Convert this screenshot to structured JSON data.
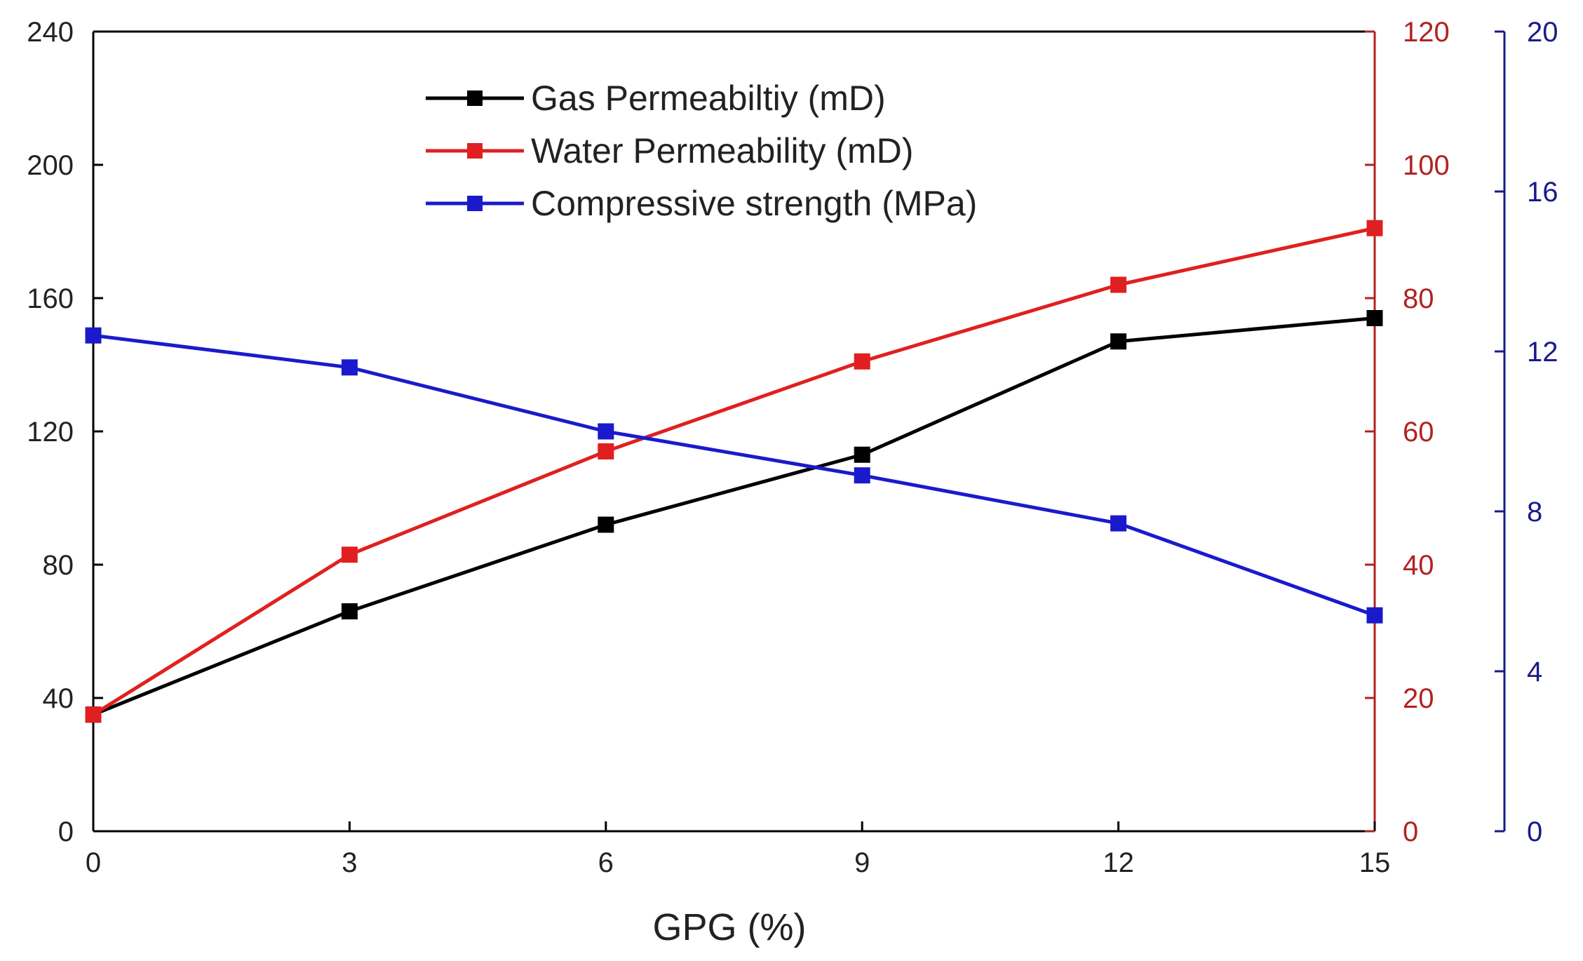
{
  "chart_data": {
    "type": "line",
    "title": "",
    "xlabel": "GPG (%)",
    "x": [
      0,
      3,
      6,
      9,
      12,
      15
    ],
    "xlim": [
      0,
      15
    ],
    "xticks": [
      0,
      3,
      6,
      9,
      12,
      15
    ],
    "grid": false,
    "legend_position": "top-center",
    "axes": {
      "left": {
        "min": 0,
        "max": 240,
        "ticks": [
          0,
          40,
          80,
          120,
          160,
          200,
          240
        ],
        "color": "#000000"
      },
      "right1": {
        "min": 0,
        "max": 120,
        "ticks": [
          0,
          20,
          40,
          60,
          80,
          100,
          120
        ],
        "color": "#b22222"
      },
      "right2": {
        "min": 0,
        "max": 20,
        "ticks": [
          0,
          4,
          8,
          12,
          16,
          20
        ],
        "color": "#1a1a8c"
      }
    },
    "series": [
      {
        "name": "Gas Permeabiltiy (mD)",
        "axis": "left",
        "color": "#000000",
        "values": [
          35,
          66,
          92,
          113,
          147,
          154
        ]
      },
      {
        "name": "Water Permeability (mD)",
        "axis": "right1",
        "color": "#e02020",
        "values": [
          17.5,
          41.5,
          57,
          70.5,
          82,
          90.5
        ]
      },
      {
        "name": "Compressive strength (MPa)",
        "axis": "right2",
        "color": "#1a1acc",
        "values": [
          12.4,
          11.6,
          10.0,
          8.9,
          7.7,
          5.4
        ]
      }
    ]
  }
}
